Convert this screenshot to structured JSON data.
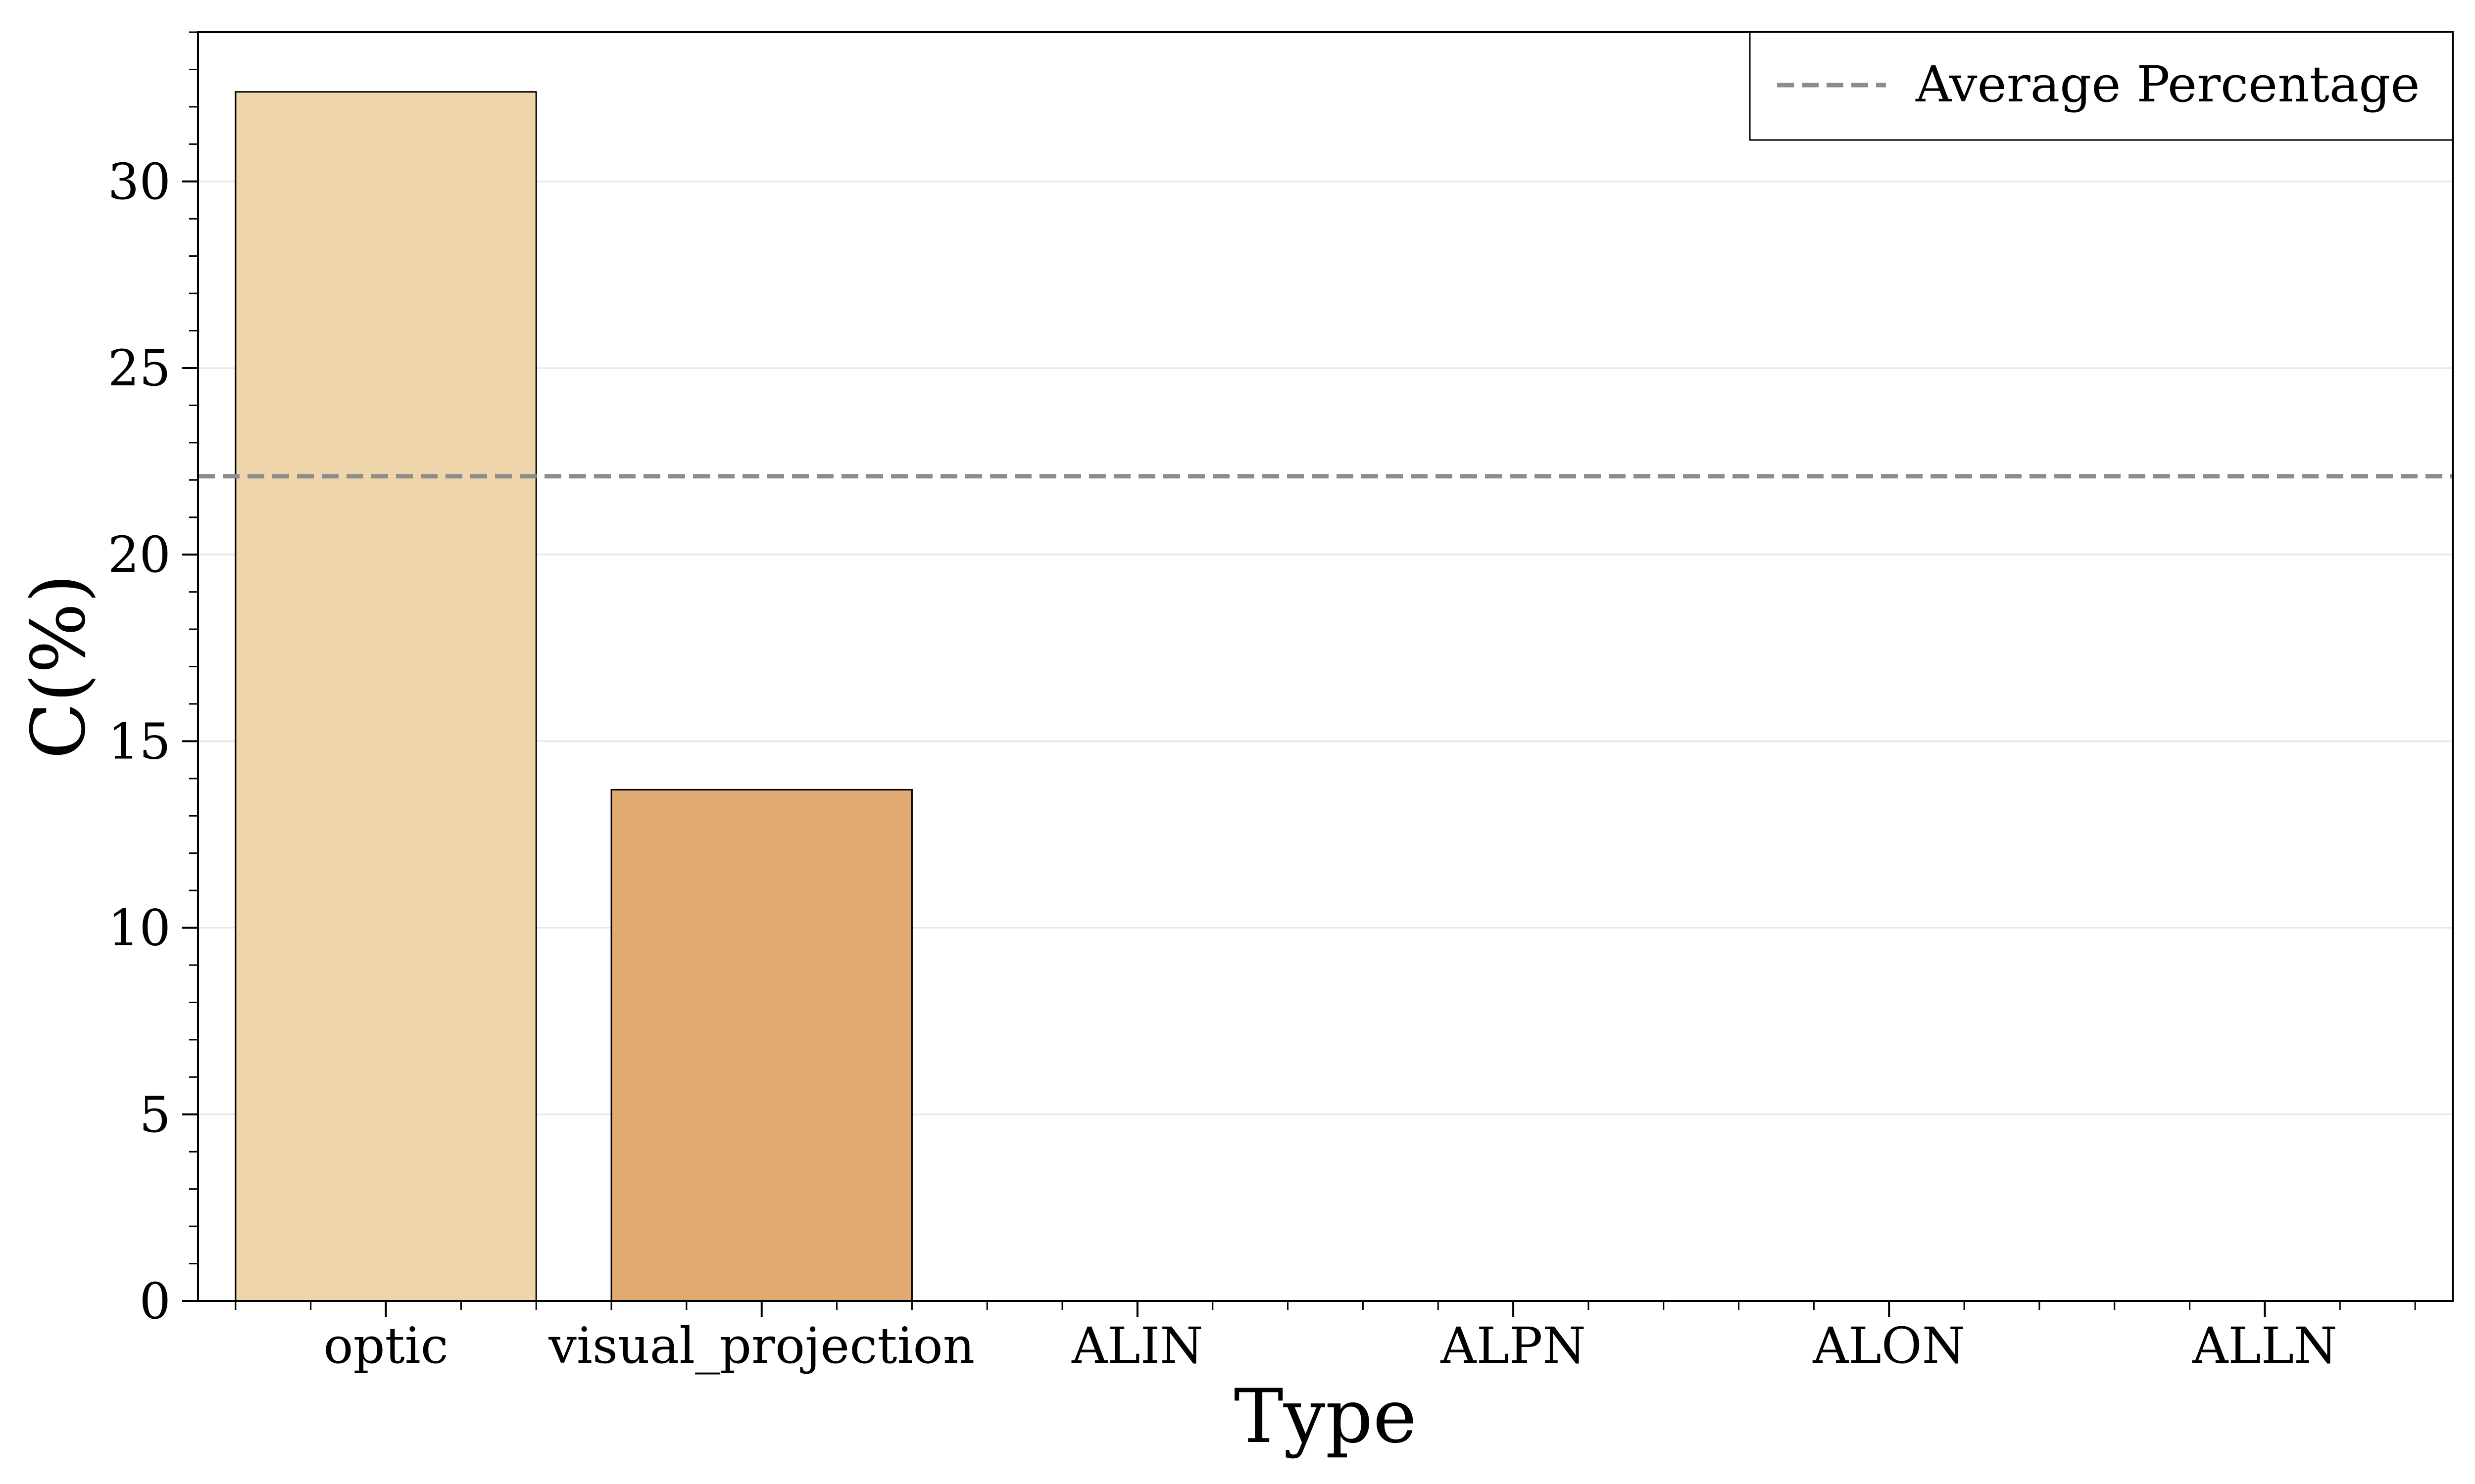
{
  "chart_data": {
    "type": "bar",
    "title": "",
    "xlabel": "Type",
    "ylabel": "C(%)",
    "categories": [
      "optic",
      "visual_projection",
      "ALIN",
      "ALPN",
      "ALON",
      "ALLN"
    ],
    "values": [
      32.4,
      13.7,
      0,
      0,
      0,
      0
    ],
    "bar_colors": [
      "#efd5aa",
      "#e2aa73",
      "#e2aa73",
      "#e2aa73",
      "#e2aa73",
      "#e2aa73"
    ],
    "ylim": [
      0,
      34
    ],
    "yticks": [
      0,
      5,
      10,
      15,
      20,
      25,
      30
    ],
    "grid": "horizontal",
    "reference_line": {
      "name": "Average Percentage",
      "value": 22.1,
      "color": "#8c8c8c",
      "style": "dashed"
    },
    "legend": {
      "position": "top-right",
      "entries": [
        "Average Percentage"
      ]
    }
  }
}
